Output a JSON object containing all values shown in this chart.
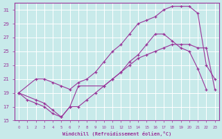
{
  "xlabel": "Windchill (Refroidissement éolien,°C)",
  "bg_color": "#c8eaea",
  "line_color": "#993399",
  "grid_color": "#ffffff",
  "axis_color": "#993399",
  "text_color": "#993399",
  "xlim": [
    -0.5,
    23.5
  ],
  "ylim": [
    15,
    32
  ],
  "yticks": [
    15,
    17,
    19,
    21,
    23,
    25,
    27,
    29,
    31
  ],
  "xticks": [
    0,
    1,
    2,
    3,
    4,
    5,
    6,
    7,
    8,
    9,
    10,
    11,
    12,
    13,
    14,
    15,
    16,
    17,
    18,
    19,
    20,
    21,
    22,
    23
  ],
  "line1_x": [
    0,
    1,
    2,
    3,
    4,
    5,
    6,
    7,
    8,
    9,
    10,
    11,
    12,
    13,
    14,
    15,
    16,
    17,
    18,
    19,
    20,
    21,
    22,
    23
  ],
  "line1_y": [
    19,
    18,
    17.5,
    17,
    16,
    15.5,
    17,
    17,
    18,
    19,
    20,
    21,
    22,
    23,
    24,
    24.5,
    25,
    25.5,
    26,
    26,
    26,
    25.5,
    25.5,
    19.5
  ],
  "line2_x": [
    0,
    2,
    3,
    4,
    5,
    6,
    7,
    8,
    9,
    10,
    11,
    12,
    13,
    14,
    15,
    16,
    17,
    18,
    19,
    20,
    21,
    22,
    23
  ],
  "line2_y": [
    19,
    21,
    21,
    20.5,
    20,
    19.5,
    20.5,
    21,
    22,
    23.5,
    25,
    26,
    27.5,
    29,
    29.5,
    30,
    31,
    31.5,
    31.5,
    31.5,
    30.5,
    23,
    21
  ],
  "line3_x": [
    0,
    2,
    3,
    4,
    5,
    6,
    7,
    10,
    11,
    12,
    13,
    14,
    15,
    16,
    17,
    18,
    19,
    20,
    21,
    22
  ],
  "line3_y": [
    19,
    18,
    17.5,
    16.5,
    15.5,
    17,
    20,
    20,
    21,
    22,
    23.5,
    24.5,
    26,
    27.5,
    27.5,
    26.5,
    25.5,
    25,
    22.5,
    19.5
  ]
}
